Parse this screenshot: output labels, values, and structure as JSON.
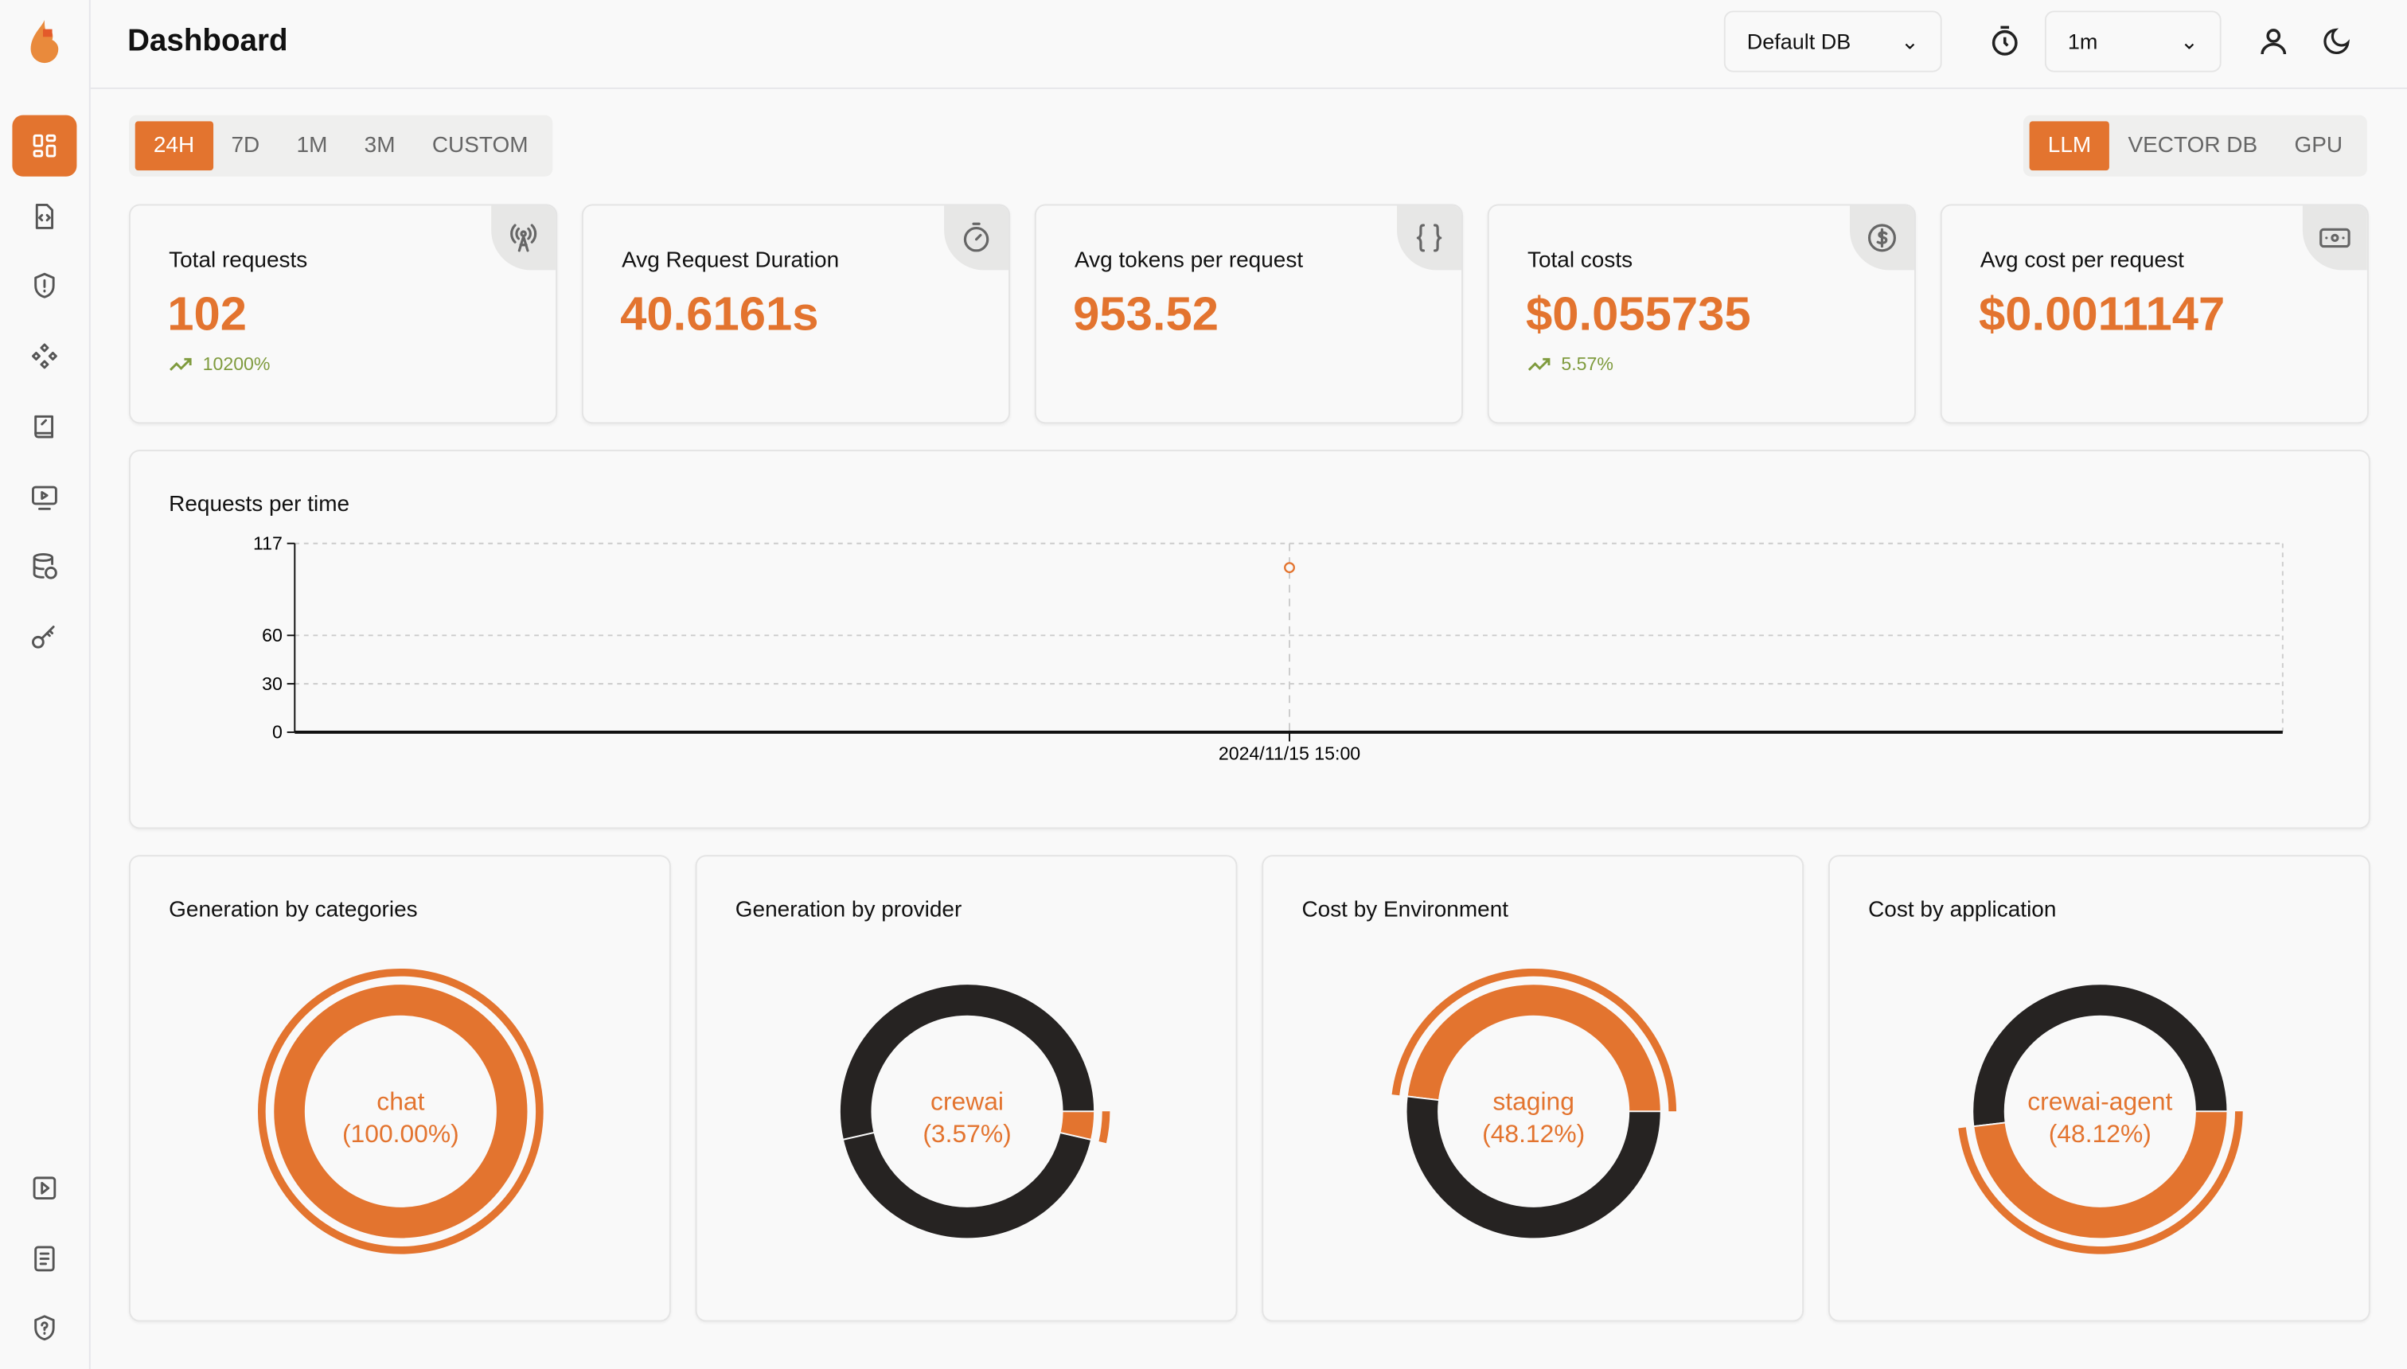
{
  "header": {
    "title": "Dashboard",
    "db_select": "Default DB",
    "refresh_select": "1m"
  },
  "sidebar": {
    "items": [
      {
        "icon": "dashboard-icon",
        "active": true
      },
      {
        "icon": "code-file-icon"
      },
      {
        "icon": "shield-alert-icon"
      },
      {
        "icon": "components-icon"
      },
      {
        "icon": "prompt-book-icon"
      },
      {
        "icon": "monitor-play-icon"
      },
      {
        "icon": "database-history-icon"
      },
      {
        "icon": "key-icon"
      }
    ],
    "bottom": [
      {
        "icon": "play-square-icon"
      },
      {
        "icon": "docs-icon"
      },
      {
        "icon": "shield-question-icon"
      }
    ]
  },
  "time_filters": [
    "24H",
    "7D",
    "1M",
    "3M",
    "CUSTOM"
  ],
  "active_time_filter": "24H",
  "type_filters": [
    "LLM",
    "VECTOR DB",
    "GPU"
  ],
  "active_type_filter": "LLM",
  "stats": [
    {
      "label": "Total requests",
      "value": "102",
      "trend": "10200%",
      "icon": "antenna-icon"
    },
    {
      "label": "Avg Request Duration",
      "value": "40.6161s",
      "icon": "timer-icon"
    },
    {
      "label": "Avg tokens per request",
      "value": "953.52",
      "icon": "braces-icon"
    },
    {
      "label": "Total costs",
      "value": "$0.055735",
      "trend": "5.57%",
      "icon": "dollar-circle-icon"
    },
    {
      "label": "Avg cost per request",
      "value": "$0.0011147",
      "icon": "banknote-icon"
    }
  ],
  "colors": {
    "accent": "#e3742f",
    "dark": "#262322",
    "trend": "#7f9b3e"
  },
  "chart_data": [
    {
      "type": "line",
      "title": "Requests per time",
      "x": [
        "2024/11/15 15:00"
      ],
      "values": [
        102
      ],
      "ylim": [
        0,
        117
      ],
      "yticks": [
        "0",
        "30",
        "60",
        "117"
      ],
      "grid": true
    },
    {
      "type": "pie",
      "title": "Generation by categories",
      "label": "chat",
      "percent": "(100.00%)",
      "slices": [
        {
          "name": "chat",
          "value": 100,
          "color": "#e3742f",
          "active": true
        }
      ]
    },
    {
      "type": "pie",
      "title": "Generation by provider",
      "label": "crewai",
      "percent": "(3.57%)",
      "slices": [
        {
          "value": 53.57,
          "color": "#262322"
        },
        {
          "value": 42.86,
          "color": "#262322"
        },
        {
          "name": "crewai",
          "value": 3.57,
          "color": "#e3742f",
          "active": true
        }
      ]
    },
    {
      "type": "pie",
      "title": "Cost by Environment",
      "label": "staging",
      "percent": "(48.12%)",
      "slices": [
        {
          "name": "staging",
          "value": 48.12,
          "color": "#e3742f",
          "active": true
        },
        {
          "value": 51.88,
          "color": "#262322"
        }
      ]
    },
    {
      "type": "pie",
      "title": "Cost by application",
      "label": "crewai-agent",
      "percent": "(48.12%)",
      "slices": [
        {
          "value": 51.88,
          "color": "#262322"
        },
        {
          "name": "crewai-agent",
          "value": 48.12,
          "color": "#e3742f",
          "active": true
        }
      ]
    }
  ]
}
